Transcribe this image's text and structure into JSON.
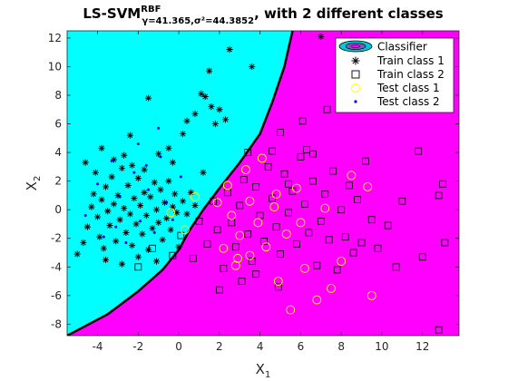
{
  "chart_data": {
    "type": "scatter",
    "title": {
      "prefix": "LS-SVM",
      "superscript": "RBF",
      "subscript": "γ=41.365,σ²=44.3852",
      "suffix": ", with 2 different classes"
    },
    "xlabel": {
      "base": "X",
      "sub": "1"
    },
    "ylabel": {
      "base": "X",
      "sub": "2"
    },
    "xlim": [
      -5.5,
      13.8
    ],
    "ylim": [
      -8.8,
      12.5
    ],
    "xticks": [
      -4,
      -2,
      0,
      2,
      4,
      6,
      8,
      10,
      12
    ],
    "yticks": [
      -8,
      -6,
      -4,
      -2,
      0,
      2,
      4,
      6,
      8,
      10,
      12
    ],
    "colors": {
      "class1_region": "#00ffff",
      "class2_region": "#ff00ff",
      "boundary": "#000000",
      "test_class1": "#ffff00",
      "test_class2": "#0000ff"
    },
    "boundary": [
      [
        -5.5,
        -8.8
      ],
      [
        -3.5,
        -7.3
      ],
      [
        -2,
        -5.7
      ],
      [
        -0.8,
        -4.2
      ],
      [
        0,
        -2.8
      ],
      [
        0.5,
        -1.5
      ],
      [
        1.2,
        0
      ],
      [
        2,
        1.5
      ],
      [
        3,
        3.3
      ],
      [
        4,
        5.3
      ],
      [
        4.6,
        7.5
      ],
      [
        5.2,
        10
      ],
      [
        5.6,
        12.5
      ]
    ],
    "legend": {
      "position": "top-right",
      "entries": [
        "Classifier",
        "Train class 1",
        "Train class 2",
        "Test class 1",
        "Test class 2"
      ]
    },
    "series": [
      {
        "name": "Train class 1",
        "marker": "asterisk",
        "points": [
          [
            -5,
            -3.1
          ],
          [
            -4.7,
            -2.3
          ],
          [
            -4.5,
            -1.2
          ],
          [
            -4.3,
            0.2
          ],
          [
            -4.2,
            1.1
          ],
          [
            -4,
            -0.5
          ],
          [
            -3.9,
            -1.9
          ],
          [
            -3.8,
            0.7
          ],
          [
            -3.7,
            -2.7
          ],
          [
            -3.6,
            1.6
          ],
          [
            -3.5,
            -0.1
          ],
          [
            -3.4,
            -1.1
          ],
          [
            -3.3,
            2.3
          ],
          [
            -3.2,
            0.4
          ],
          [
            -3.1,
            -2.2
          ],
          [
            -3,
            1
          ],
          [
            -2.9,
            -0.7
          ],
          [
            -2.8,
            2.9
          ],
          [
            -2.7,
            0.1
          ],
          [
            -2.6,
            -1.6
          ],
          [
            -2.5,
            1.7
          ],
          [
            -2.4,
            -0.3
          ],
          [
            -2.3,
            -2.5
          ],
          [
            -2.2,
            0.8
          ],
          [
            -2.1,
            -1
          ],
          [
            -2,
            2.2
          ],
          [
            -1.9,
            0.3
          ],
          [
            -1.8,
            -1.7
          ],
          [
            -1.7,
            1.2
          ],
          [
            -1.6,
            -0.4
          ],
          [
            -1.5,
            -2.8
          ],
          [
            -1.4,
            0.9
          ],
          [
            -1.3,
            -1.3
          ],
          [
            -1.2,
            1.9
          ],
          [
            -1.1,
            0
          ],
          [
            -1,
            -0.9
          ],
          [
            -0.9,
            1.4
          ],
          [
            -0.8,
            -2.1
          ],
          [
            -0.7,
            0.5
          ],
          [
            -0.6,
            -0.6
          ],
          [
            -0.5,
            2
          ],
          [
            -0.4,
            -1.4
          ],
          [
            -0.3,
            0.2
          ],
          [
            -0.2,
            1.1
          ],
          [
            -0.1,
            -0.2
          ],
          [
            0,
            -2.6
          ],
          [
            0.2,
            0.6
          ],
          [
            0.4,
            -0.3
          ],
          [
            0.6,
            1.2
          ],
          [
            0.8,
            0.3
          ],
          [
            -3.8,
            4.3
          ],
          [
            -3.2,
            3.5
          ],
          [
            -2.7,
            3.8
          ],
          [
            -2.4,
            5.2
          ],
          [
            -1.5,
            7.8
          ],
          [
            -0.5,
            4.3
          ],
          [
            0.4,
            6.2
          ],
          [
            0.8,
            6.7
          ],
          [
            1.1,
            8.1
          ],
          [
            1.3,
            7.9
          ],
          [
            1.6,
            7.2
          ],
          [
            1.8,
            6
          ],
          [
            2,
            7
          ],
          [
            2.3,
            6.3
          ],
          [
            1.5,
            9.7
          ],
          [
            2.5,
            11.2
          ],
          [
            -1,
            3.9
          ],
          [
            0.2,
            5.3
          ],
          [
            3.6,
            10
          ],
          [
            7,
            12.1
          ],
          [
            -4.6,
            3.3
          ],
          [
            -4.1,
            2.6
          ],
          [
            -2.3,
            3.1
          ],
          [
            -1.7,
            2.8
          ],
          [
            -0.3,
            3.3
          ],
          [
            1.2,
            2.6
          ],
          [
            -3.6,
            -3.5
          ],
          [
            -2.8,
            -3.8
          ],
          [
            -2,
            -3.3
          ],
          [
            -1.1,
            -3.6
          ]
        ]
      },
      {
        "name": "Train class 2",
        "marker": "square",
        "points": [
          [
            -2,
            -4
          ],
          [
            -1.3,
            -2.7
          ],
          [
            -0.3,
            -3.2
          ],
          [
            0.1,
            -1.8
          ],
          [
            0.7,
            -3.4
          ],
          [
            1,
            -0.8
          ],
          [
            1.4,
            -2.4
          ],
          [
            1.7,
            0.6
          ],
          [
            1.9,
            -1.4
          ],
          [
            2.2,
            -4.1
          ],
          [
            2.4,
            1.2
          ],
          [
            2.6,
            -0.9
          ],
          [
            2.8,
            -2.6
          ],
          [
            3,
            0.3
          ],
          [
            3.2,
            2.1
          ],
          [
            3.4,
            -1.7
          ],
          [
            3.6,
            -3.6
          ],
          [
            3.8,
            1.6
          ],
          [
            4,
            -0.4
          ],
          [
            4.2,
            -2.2
          ],
          [
            4.4,
            3
          ],
          [
            4.6,
            0.8
          ],
          [
            4.8,
            -1.2
          ],
          [
            5,
            -3.1
          ],
          [
            5.2,
            2.5
          ],
          [
            5.4,
            -0.2
          ],
          [
            5.6,
            1.3
          ],
          [
            5.8,
            -2.4
          ],
          [
            6,
            3.7
          ],
          [
            6.2,
            0.4
          ],
          [
            6.4,
            -1.6
          ],
          [
            6.6,
            2
          ],
          [
            6.8,
            -3.9
          ],
          [
            7,
            -0.8
          ],
          [
            7.2,
            1.1
          ],
          [
            7.4,
            -2.1
          ],
          [
            7.6,
            2.7
          ],
          [
            7.8,
            -4.2
          ],
          [
            8,
            0
          ],
          [
            8.2,
            -1.9
          ],
          [
            8.4,
            1.7
          ],
          [
            8.6,
            -3
          ],
          [
            8.8,
            0.7
          ],
          [
            9,
            -2.3
          ],
          [
            9.2,
            3.4
          ],
          [
            9.5,
            -0.7
          ],
          [
            9.8,
            -2.7
          ],
          [
            10.3,
            -1.1
          ],
          [
            10.7,
            -4
          ],
          [
            11,
            0.6
          ],
          [
            11.8,
            4.1
          ],
          [
            12,
            -3.3
          ],
          [
            12.8,
            1
          ],
          [
            13,
            1.8
          ],
          [
            13.1,
            -2.3
          ],
          [
            12.8,
            -8.4
          ],
          [
            6.3,
            4.2
          ],
          [
            5,
            5.4
          ],
          [
            4.6,
            4.1
          ],
          [
            3.4,
            4
          ],
          [
            8.7,
            8.3
          ],
          [
            8.9,
            8.5
          ],
          [
            6.1,
            6.2
          ],
          [
            7.3,
            7
          ],
          [
            9.5,
            7.6
          ],
          [
            10.2,
            7.3
          ],
          [
            6.6,
            3.9
          ],
          [
            5.4,
            1.8
          ],
          [
            3.8,
            -4.5
          ],
          [
            4.9,
            -5.4
          ],
          [
            3.1,
            -5
          ],
          [
            2,
            -5.6
          ]
        ]
      },
      {
        "name": "Test class 1",
        "marker": "circle",
        "points": [
          [
            5.5,
            -7
          ],
          [
            6.8,
            -6.3
          ],
          [
            7.5,
            -5.5
          ],
          [
            4.9,
            -5
          ],
          [
            6.2,
            -4.1
          ],
          [
            8,
            -3.6
          ],
          [
            2.8,
            -3.9
          ],
          [
            3.5,
            -3.2
          ],
          [
            4.3,
            -2.6
          ],
          [
            5.3,
            -1.7
          ],
          [
            6,
            -0.9
          ],
          [
            7.2,
            0.1
          ],
          [
            8.5,
            2.4
          ],
          [
            9.3,
            1.6
          ],
          [
            2.4,
            1.7
          ],
          [
            3.3,
            2.8
          ],
          [
            4.1,
            3.6
          ],
          [
            2.2,
            -2.7
          ],
          [
            3,
            -1.8
          ],
          [
            3.9,
            -0.9
          ],
          [
            4.7,
            0.2
          ],
          [
            5.8,
            1.5
          ],
          [
            0.8,
            0.9
          ],
          [
            -0.4,
            -0.2
          ],
          [
            0.3,
            -1.4
          ],
          [
            1.9,
            0.5
          ],
          [
            2.6,
            -0.4
          ],
          [
            3.5,
            0.6
          ],
          [
            4.8,
            1.1
          ],
          [
            2.9,
            -3.4
          ],
          [
            9.5,
            -6
          ]
        ]
      },
      {
        "name": "Test class 2",
        "marker": "dot",
        "points": [
          [
            -4.6,
            -0.4
          ],
          [
            -4,
            1.8
          ],
          [
            -3.7,
            -1.9
          ],
          [
            -3.3,
            3.4
          ],
          [
            -2.9,
            0.9
          ],
          [
            -2.6,
            -2.3
          ],
          [
            -2.2,
            2.6
          ],
          [
            -1.9,
            -0.8
          ],
          [
            -1.5,
            1.4
          ],
          [
            -1.2,
            -1.6
          ],
          [
            -0.9,
            3.7
          ],
          [
            -0.6,
            0.5
          ],
          [
            -0.3,
            -0.7
          ],
          [
            0.1,
            2.3
          ],
          [
            -2,
            4.6
          ],
          [
            -1.6,
            3.1
          ],
          [
            -3.1,
            -1.2
          ],
          [
            -1,
            5.7
          ]
        ]
      }
    ]
  }
}
